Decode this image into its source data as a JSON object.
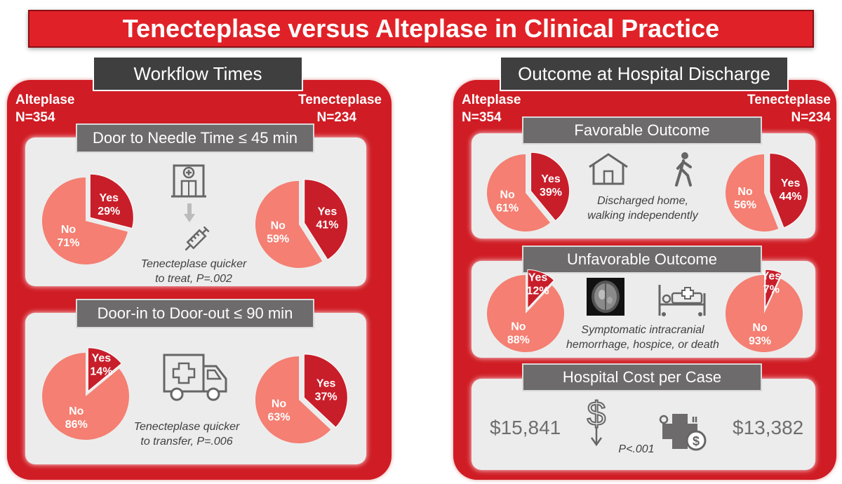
{
  "title": "Tenecteplase versus Alteplase in Clinical Practice",
  "colors": {
    "title_red": "#e02228",
    "panel_red": "#d01c24",
    "yes_red": "#c81e2a",
    "no_salmon": "#f47f72",
    "box_gray": "#ececec",
    "head_gray": "#6d6b6b"
  },
  "left": {
    "heading": "Workflow Times",
    "alteplase_label": "Alteplase",
    "alteplase_n": "N=354",
    "tenecteplase_label": "Tenecteplase",
    "tenecteplase_n": "N=234",
    "door_to_needle": {
      "heading": "Door to Needle Time ≤ 45 min",
      "note_line1": "Tenecteplase quicker",
      "note_line2": "to treat, P=.002",
      "icons": [
        "hospital-icon",
        "arrow-down-icon",
        "syringe-icon"
      ]
    },
    "door_in_out": {
      "heading": "Door-in to Door-out ≤ 90 min",
      "note_line1": "Tenecteplase quicker",
      "note_line2": "to transfer, P=.006",
      "icons": [
        "ambulance-icon"
      ]
    }
  },
  "right": {
    "heading": "Outcome at Hospital Discharge",
    "alteplase_label": "Alteplase",
    "alteplase_n": "N=354",
    "tenecteplase_label": "Tenecteplase",
    "tenecteplase_n": "N=234",
    "favorable": {
      "heading": "Favorable Outcome",
      "note_line1": "Discharged home,",
      "note_line2": "walking independently",
      "icons": [
        "house-icon",
        "walking-person-icon"
      ]
    },
    "unfavorable": {
      "heading": "Unfavorable Outcome",
      "note_line1": "Symptomatic intracranial",
      "note_line2": "hemorrhage, hospice, or death",
      "icons": [
        "brain-scan-icon",
        "hospital-bed-icon"
      ]
    },
    "cost": {
      "heading": "Hospital Cost per Case",
      "alteplase_value": "$15,841",
      "tenecteplase_value": "$13,382",
      "p_value": "P<.001",
      "icons": [
        "dollar-down-icon",
        "medical-cost-icon"
      ]
    }
  },
  "chart_data": [
    {
      "type": "pie",
      "id": "dtn-alteplase",
      "categories": [
        "Yes",
        "No"
      ],
      "values": [
        29,
        71
      ],
      "labels": [
        "Yes",
        "29%",
        "No",
        "71%"
      ]
    },
    {
      "type": "pie",
      "id": "dtn-tenecteplase",
      "categories": [
        "Yes",
        "No"
      ],
      "values": [
        41,
        59
      ],
      "labels": [
        "Yes",
        "41%",
        "No",
        "59%"
      ]
    },
    {
      "type": "pie",
      "id": "dido-alteplase",
      "categories": [
        "Yes",
        "No"
      ],
      "values": [
        14,
        86
      ],
      "labels": [
        "Yes",
        "14%",
        "No",
        "86%"
      ]
    },
    {
      "type": "pie",
      "id": "dido-tenecteplase",
      "categories": [
        "Yes",
        "No"
      ],
      "values": [
        37,
        63
      ],
      "labels": [
        "Yes",
        "37%",
        "No",
        "63%"
      ]
    },
    {
      "type": "pie",
      "id": "fav-alteplase",
      "categories": [
        "Yes",
        "No"
      ],
      "values": [
        39,
        61
      ],
      "labels": [
        "Yes",
        "39%",
        "No",
        "61%"
      ]
    },
    {
      "type": "pie",
      "id": "fav-tenecteplase",
      "categories": [
        "Yes",
        "No"
      ],
      "values": [
        44,
        56
      ],
      "labels": [
        "Yes",
        "44%",
        "No",
        "56%"
      ]
    },
    {
      "type": "pie",
      "id": "unfav-alteplase",
      "categories": [
        "Yes",
        "No"
      ],
      "values": [
        12,
        88
      ],
      "labels": [
        "Yes",
        "12%",
        "No",
        "88%"
      ]
    },
    {
      "type": "pie",
      "id": "unfav-tenecteplase",
      "categories": [
        "Yes",
        "No"
      ],
      "values": [
        7,
        93
      ],
      "labels": [
        "Yes",
        "7%",
        "No",
        "93%"
      ]
    }
  ]
}
